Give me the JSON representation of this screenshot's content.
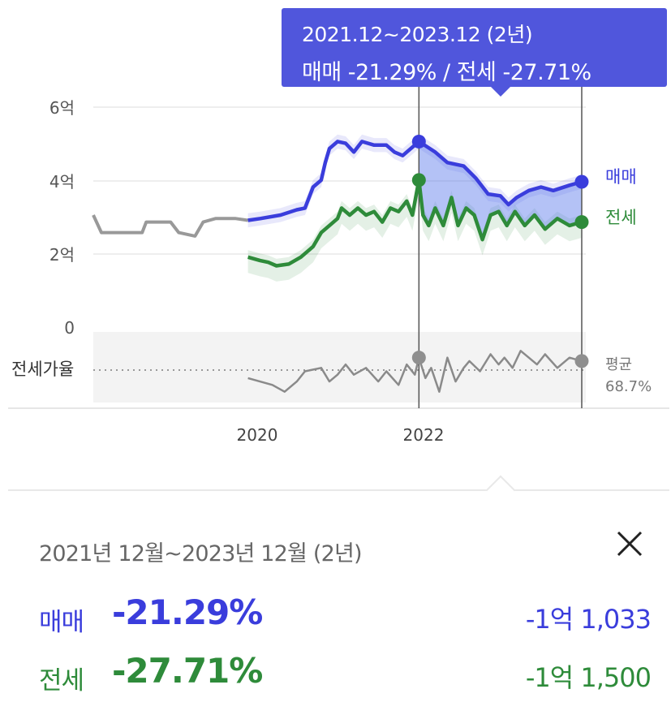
{
  "chart_data": {
    "type": "line",
    "y_ticks": [
      "6억",
      "4억",
      "2억",
      "0"
    ],
    "y_tick_values": [
      6,
      4,
      2,
      0
    ],
    "ylim": [
      0,
      6.4
    ],
    "x_ticks": [
      "2020",
      "2022"
    ],
    "x_tick_years": [
      2020,
      2022
    ],
    "xlim": [
      2018.0,
      2024.05
    ],
    "series": [
      {
        "name": "매매",
        "color": "#3a3ddc",
        "points": [
          [
            2019.9,
            3.05
          ],
          [
            2020.05,
            3.1
          ],
          [
            2020.3,
            3.2
          ],
          [
            2020.5,
            3.35
          ],
          [
            2020.6,
            3.4
          ],
          [
            2020.65,
            3.7
          ],
          [
            2020.7,
            4.0
          ],
          [
            2020.8,
            4.2
          ],
          [
            2020.85,
            4.7
          ],
          [
            2020.9,
            5.1
          ],
          [
            2021.0,
            5.3
          ],
          [
            2021.1,
            5.25
          ],
          [
            2021.2,
            5.0
          ],
          [
            2021.3,
            5.3
          ],
          [
            2021.45,
            5.2
          ],
          [
            2021.6,
            5.2
          ],
          [
            2021.7,
            5.0
          ],
          [
            2021.8,
            4.9
          ],
          [
            2021.9,
            5.1
          ],
          [
            2022.0,
            5.3
          ],
          [
            2022.2,
            5.0
          ],
          [
            2022.35,
            4.7
          ],
          [
            2022.55,
            4.6
          ],
          [
            2022.7,
            4.25
          ],
          [
            2022.85,
            3.8
          ],
          [
            2023.0,
            3.75
          ],
          [
            2023.1,
            3.5
          ],
          [
            2023.2,
            3.7
          ],
          [
            2023.35,
            3.9
          ],
          [
            2023.5,
            4.0
          ],
          [
            2023.65,
            3.9
          ],
          [
            2023.85,
            4.05
          ],
          [
            2024.0,
            4.15
          ]
        ]
      },
      {
        "name": "전세",
        "color": "#2e8b3a",
        "points": [
          [
            2019.9,
            2.0
          ],
          [
            2020.05,
            1.9
          ],
          [
            2020.15,
            1.85
          ],
          [
            2020.25,
            1.75
          ],
          [
            2020.4,
            1.8
          ],
          [
            2020.55,
            2.0
          ],
          [
            2020.7,
            2.3
          ],
          [
            2020.8,
            2.7
          ],
          [
            2020.9,
            2.9
          ],
          [
            2021.0,
            3.1
          ],
          [
            2021.05,
            3.4
          ],
          [
            2021.15,
            3.2
          ],
          [
            2021.25,
            3.4
          ],
          [
            2021.35,
            3.2
          ],
          [
            2021.45,
            3.3
          ],
          [
            2021.55,
            3.0
          ],
          [
            2021.65,
            3.4
          ],
          [
            2021.75,
            3.3
          ],
          [
            2021.85,
            3.6
          ],
          [
            2021.92,
            3.2
          ],
          [
            2022.0,
            4.2
          ],
          [
            2022.05,
            3.2
          ],
          [
            2022.12,
            2.9
          ],
          [
            2022.2,
            3.4
          ],
          [
            2022.3,
            2.9
          ],
          [
            2022.4,
            3.7
          ],
          [
            2022.48,
            2.9
          ],
          [
            2022.58,
            3.4
          ],
          [
            2022.68,
            3.2
          ],
          [
            2022.78,
            2.5
          ],
          [
            2022.88,
            3.2
          ],
          [
            2022.98,
            3.3
          ],
          [
            2023.08,
            2.9
          ],
          [
            2023.18,
            3.3
          ],
          [
            2023.3,
            2.9
          ],
          [
            2023.42,
            3.2
          ],
          [
            2023.55,
            2.8
          ],
          [
            2023.7,
            3.1
          ],
          [
            2023.85,
            2.9
          ],
          [
            2024.0,
            3.0
          ]
        ]
      },
      {
        "name": "history",
        "color": "#999999",
        "points": [
          [
            2018.0,
            3.2
          ],
          [
            2018.1,
            2.7
          ],
          [
            2018.3,
            2.7
          ],
          [
            2018.6,
            2.7
          ],
          [
            2018.65,
            3.0
          ],
          [
            2018.95,
            3.0
          ],
          [
            2019.05,
            2.7
          ],
          [
            2019.25,
            2.6
          ],
          [
            2019.35,
            3.0
          ],
          [
            2019.5,
            3.1
          ],
          [
            2019.75,
            3.1
          ],
          [
            2019.9,
            3.05
          ]
        ]
      }
    ],
    "range_band": {
      "start": 2019.9,
      "end": 2024.05,
      "note": "light shaded min-max range per series"
    },
    "ratio_panel": {
      "label": "전세가율",
      "avg_label": "평균",
      "avg_value": "68.7%",
      "avg": 68.7,
      "points": [
        [
          2019.9,
          64
        ],
        [
          2020.2,
          60
        ],
        [
          2020.35,
          56
        ],
        [
          2020.5,
          62
        ],
        [
          2020.6,
          68
        ],
        [
          2020.8,
          70
        ],
        [
          2020.9,
          62
        ],
        [
          2021.0,
          66
        ],
        [
          2021.1,
          72
        ],
        [
          2021.2,
          66
        ],
        [
          2021.35,
          70
        ],
        [
          2021.5,
          62
        ],
        [
          2021.6,
          68
        ],
        [
          2021.75,
          60
        ],
        [
          2021.85,
          72
        ],
        [
          2021.95,
          66
        ],
        [
          2022.0,
          76
        ],
        [
          2022.08,
          64
        ],
        [
          2022.15,
          70
        ],
        [
          2022.25,
          56
        ],
        [
          2022.35,
          76
        ],
        [
          2022.45,
          62
        ],
        [
          2022.55,
          70
        ],
        [
          2022.62,
          74
        ],
        [
          2022.75,
          68
        ],
        [
          2022.88,
          78
        ],
        [
          2022.98,
          72
        ],
        [
          2023.05,
          76
        ],
        [
          2023.15,
          70
        ],
        [
          2023.25,
          80
        ],
        [
          2023.35,
          76
        ],
        [
          2023.45,
          72
        ],
        [
          2023.55,
          78
        ],
        [
          2023.7,
          70
        ],
        [
          2023.85,
          76
        ],
        [
          2024.0,
          74
        ]
      ]
    }
  },
  "selection": {
    "start": 2022.0,
    "end": 2024.0,
    "tooltip_period": "2021.12~2023.12 (2년)",
    "tooltip_values": "매매 -21.29%  /  전세 -27.71%"
  },
  "legend": {
    "sale": "매매",
    "jeonse": "전세"
  },
  "panel": {
    "period": "2021년 12월~2023년 12월 (2년)",
    "close_icon": "close-icon",
    "rows": [
      {
        "label": "매매",
        "percent": "-21.29%",
        "amount": "-1억 1,033",
        "color": "#3a3ddc"
      },
      {
        "label": "전세",
        "percent": "-27.71%",
        "amount": "-1억 1,500",
        "color": "#2e8b3a"
      }
    ]
  }
}
